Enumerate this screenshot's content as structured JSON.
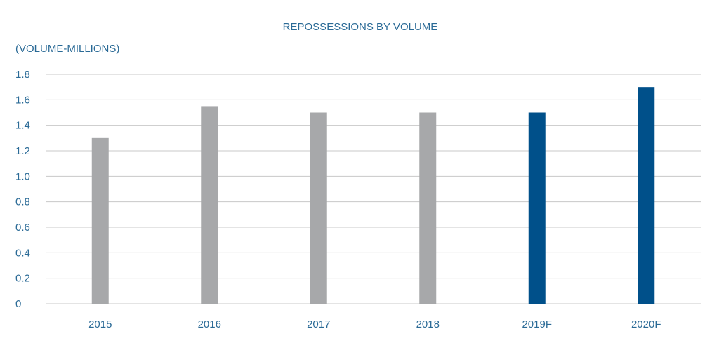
{
  "chart_data": {
    "type": "bar",
    "title": "REPOSSESSIONS BY VOLUME",
    "ylabel": "(VOLUME-MILLIONS)",
    "xlabel": "",
    "categories": [
      "2015",
      "2016",
      "2017",
      "2018",
      "2019F",
      "2020F"
    ],
    "values": [
      1.3,
      1.55,
      1.5,
      1.5,
      1.5,
      1.7
    ],
    "ylim": [
      0,
      1.8
    ],
    "yticks": [
      "0",
      "0.2",
      "0.4",
      "0.6",
      "0.8",
      "1.0",
      "1.2",
      "1.4",
      "1.6",
      "1.8"
    ],
    "grid": true,
    "colors": {
      "actual": "#a7a8aa",
      "forecast": "#00508a",
      "text": "#2a6a96",
      "grid": "#c8c8c8"
    },
    "bar_color_keys": [
      "actual",
      "actual",
      "actual",
      "actual",
      "forecast",
      "forecast"
    ]
  }
}
